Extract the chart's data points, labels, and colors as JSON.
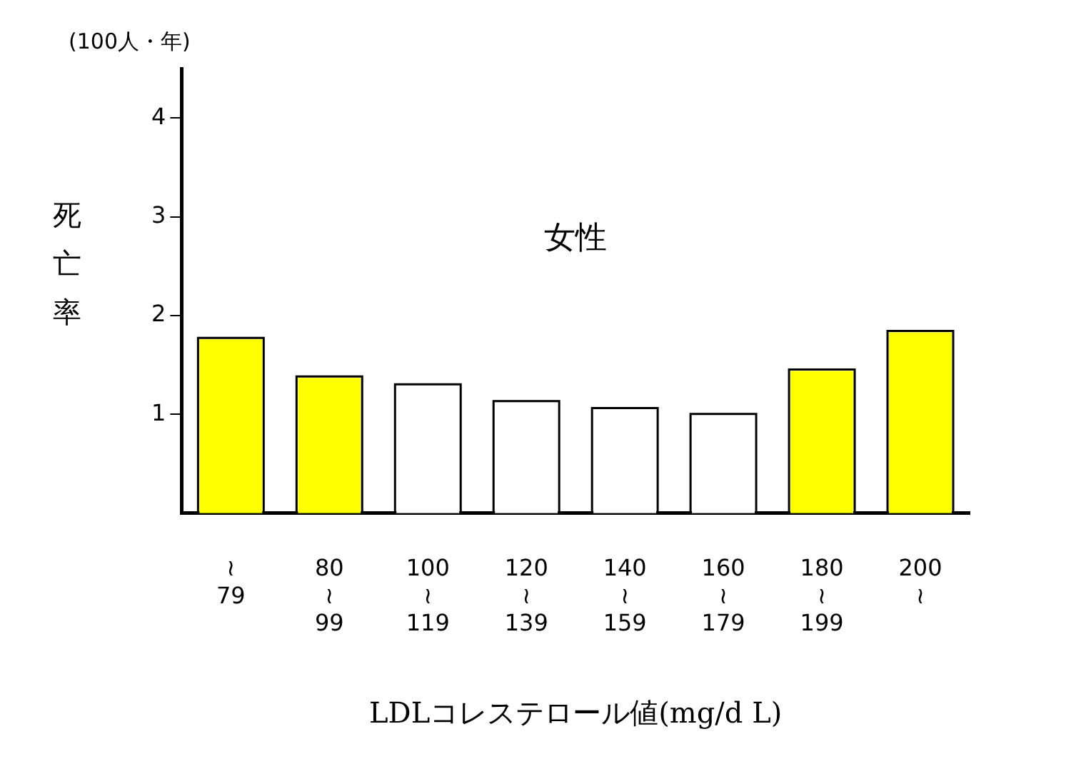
{
  "chart_data": {
    "type": "bar",
    "title": "女性",
    "ylabel": "死亡率",
    "xlabel": "LDLコレステロール値(mg/d L)",
    "annotations": [
      "(100人・年)"
    ],
    "categories": [
      "≀\n79",
      "80\n≀\n99",
      "100\n≀\n119",
      "120\n≀\n139",
      "140\n≀\n159",
      "160\n≀\n179",
      "180\n≀\n199",
      "200\n≀"
    ],
    "values": [
      1.76,
      1.37,
      1.29,
      1.12,
      1.05,
      0.99,
      1.44,
      1.83
    ],
    "colors": [
      "#ffff00",
      "#ffff00",
      "#ffffff",
      "#ffffff",
      "#ffffff",
      "#ffffff",
      "#ffff00",
      "#ffff00"
    ],
    "ylim": [
      0,
      4.5
    ],
    "yticks": [
      1,
      2,
      3,
      4
    ],
    "grid": false,
    "legend": false
  }
}
